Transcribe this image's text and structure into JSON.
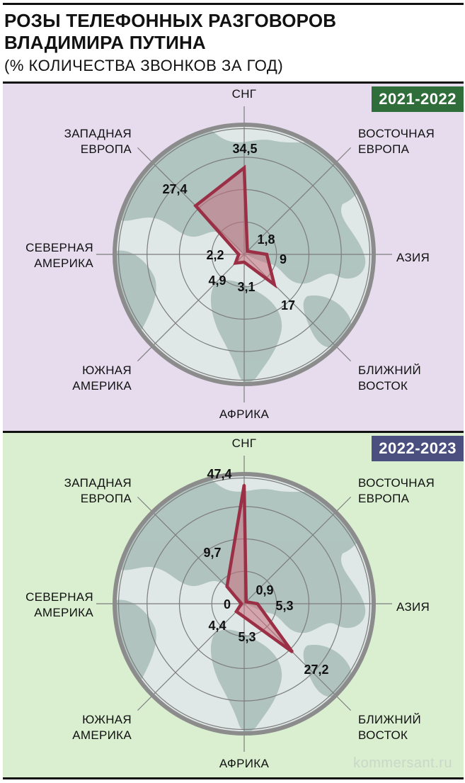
{
  "header": {
    "title_line1": "РОЗЫ ТЕЛЕФОННЫХ РАЗГОВОРОВ",
    "title_line2": "ВЛАДИМИРА ПУТИНА",
    "subtitle": "(% КОЛИЧЕСТВА ЗВОНКОВ ЗА ГОД)"
  },
  "watermark": "kommersant.ru",
  "colors": {
    "panel1_bg": "#e6dcee",
    "panel2_bg": "#d9efd0",
    "badge1": "#2f6e3a",
    "badge2": "#4a4f80",
    "rose_stroke": "#9b2f46",
    "rose_fill": "#c96f7e",
    "globe_ocean": "#dfe8e6",
    "globe_land": "#a8bdb8",
    "globe_rim": "#8c8c8c"
  },
  "chart_data": [
    {
      "type": "radar",
      "period": "2021-2022",
      "axes": [
        {
          "label_lines": [
            "СНГ"
          ],
          "value": 34.5,
          "value_label": "34,5"
        },
        {
          "label_lines": [
            "ВОСТОЧНАЯ",
            "ЕВРОПА"
          ],
          "value": 1.8,
          "value_label": "1,8"
        },
        {
          "label_lines": [
            "АЗИЯ"
          ],
          "value": 9,
          "value_label": "9"
        },
        {
          "label_lines": [
            "БЛИЖНИЙ",
            "ВОСТОК"
          ],
          "value": 17,
          "value_label": "17"
        },
        {
          "label_lines": [
            "АФРИКА"
          ],
          "value": 3.1,
          "value_label": "3,1"
        },
        {
          "label_lines": [
            "ЮЖНАЯ",
            "АМЕРИКА"
          ],
          "value": 4.9,
          "value_label": "4,9"
        },
        {
          "label_lines": [
            "СЕВЕРНАЯ",
            "АМЕРИКА"
          ],
          "value": 2.2,
          "value_label": "2,2"
        },
        {
          "label_lines": [
            "ЗАПАДНАЯ",
            "ЕВРОПА"
          ],
          "value": 27.4,
          "value_label": "27,4"
        }
      ]
    },
    {
      "type": "radar",
      "period": "2022-2023",
      "axes": [
        {
          "label_lines": [
            "СНГ"
          ],
          "value": 47.4,
          "value_label": "47,4"
        },
        {
          "label_lines": [
            "ВОСТОЧНАЯ",
            "ЕВРОПА"
          ],
          "value": 0.9,
          "value_label": "0,9"
        },
        {
          "label_lines": [
            "АЗИЯ"
          ],
          "value": 5.3,
          "value_label": "5,3"
        },
        {
          "label_lines": [
            "БЛИЖНИЙ",
            "ВОСТОК"
          ],
          "value": 27.2,
          "value_label": "27,2"
        },
        {
          "label_lines": [
            "АФРИКА"
          ],
          "value": 5.3,
          "value_label": "5,3"
        },
        {
          "label_lines": [
            "ЮЖНАЯ",
            "АМЕРИКА"
          ],
          "value": 4.4,
          "value_label": "4,4"
        },
        {
          "label_lines": [
            "СЕВЕРНАЯ",
            "АМЕРИКА"
          ],
          "value": 0,
          "value_label": "0"
        },
        {
          "label_lines": [
            "ЗАПАДНАЯ",
            "ЕВРОПА"
          ],
          "value": 9.7,
          "value_label": "9,7"
        }
      ]
    }
  ]
}
